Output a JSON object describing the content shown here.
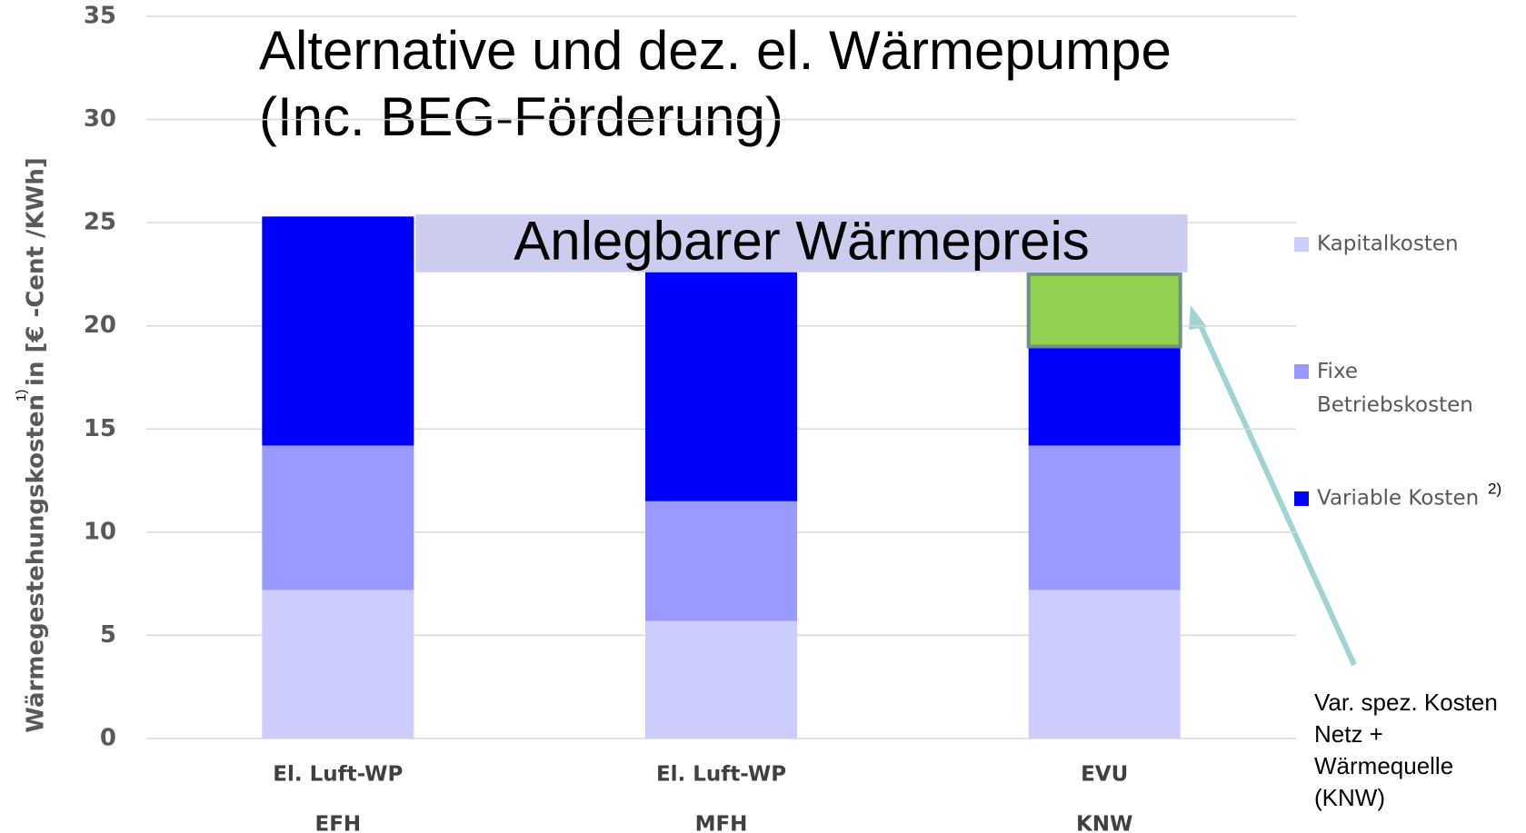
{
  "chart_data": {
    "type": "stacked_bar",
    "title": [
      "Alternative und dez. el. Wärmepumpe",
      "(Inc. BEG-Förderung)"
    ],
    "y_label": "Wärmegestehungskosten in [€ -Cent /KWh]",
    "y_label_note": "1)",
    "categories": [
      "El. Luft-WP",
      "El. Luft-WP",
      "EVU"
    ],
    "category_sublabels": [
      "EFH",
      "MFH",
      "KNW"
    ],
    "series": [
      {
        "name": "Kapitalkosten",
        "color": "#ccccfe",
        "values": [
          7.2,
          5.7,
          7.2
        ]
      },
      {
        "name": "Fixe Betriebskosten",
        "color": "#9999ff",
        "values": [
          7.0,
          5.8,
          7.0
        ]
      },
      {
        "name": "Variable Kosten",
        "name_note": "2)",
        "color": "#0000ff",
        "values": [
          11.1,
          11.1,
          4.8
        ]
      },
      {
        "color": "#92d050",
        "values": [
          null,
          null,
          3.5
        ]
      }
    ],
    "band": {
      "label": "Anlegbarer Wärmepreis",
      "range": [
        22.6,
        25.4
      ],
      "color": "#ccccee"
    },
    "annotation": [
      "Var. spez. Kosten",
      "Netz +",
      "Wärmequelle",
      "(KNW)"
    ],
    "ylim": [
      0,
      35
    ],
    "yticks": [
      0,
      5,
      10,
      15,
      20,
      25,
      30,
      35
    ],
    "grid": true
  }
}
